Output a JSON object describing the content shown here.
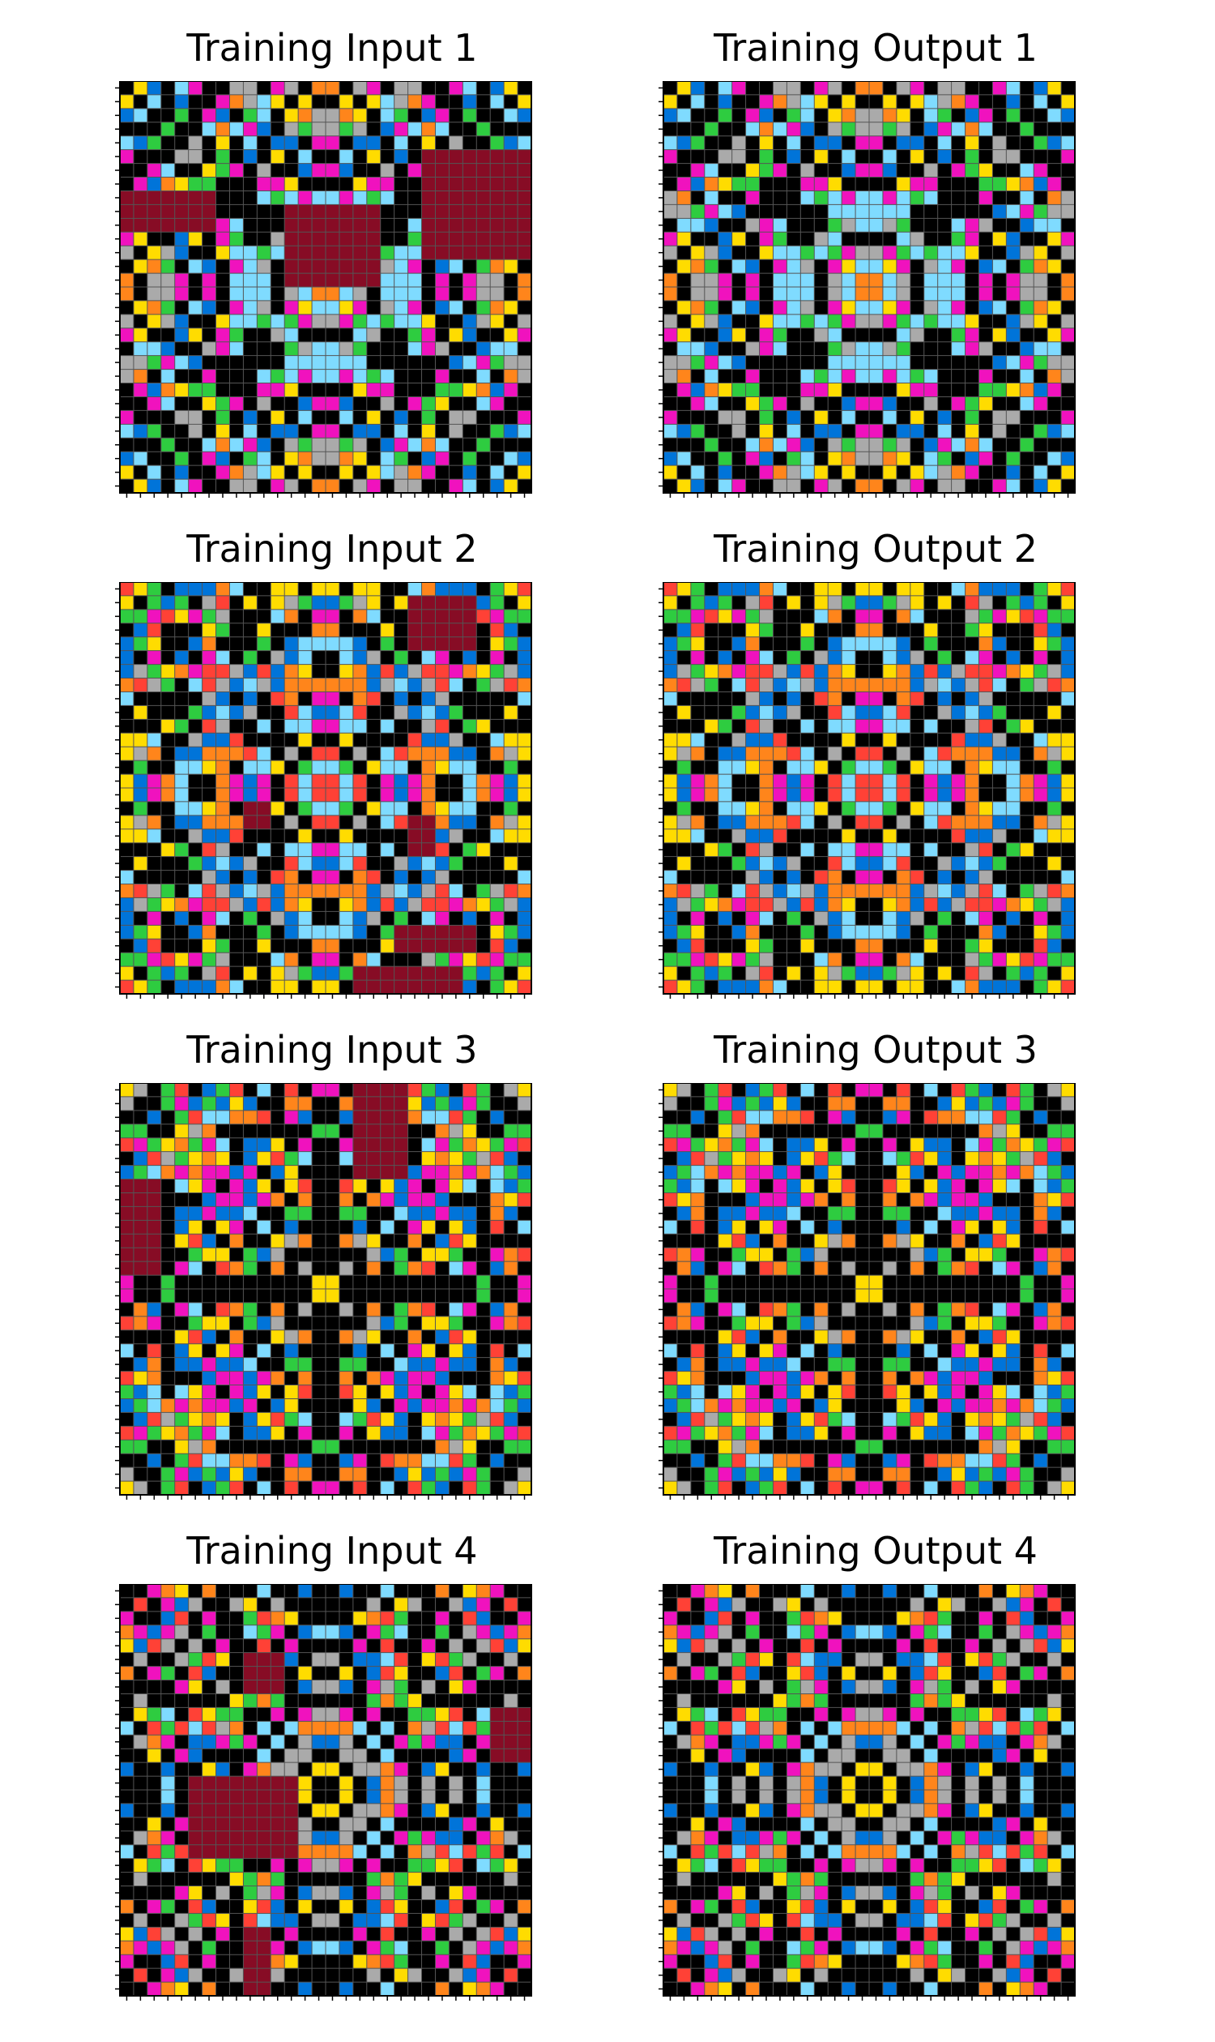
{
  "panels": [
    {
      "title": "Training Input 1"
    },
    {
      "title": "Training Output 1"
    },
    {
      "title": "Training Input 2"
    },
    {
      "title": "Training Output 2"
    },
    {
      "title": "Training Input 3"
    },
    {
      "title": "Training Output 3"
    },
    {
      "title": "Training Input 4"
    },
    {
      "title": "Training Output 4"
    }
  ],
  "grid_size": 30,
  "palette": {
    "black": "#000000",
    "blue": "#0074D9",
    "red": "#FF4136",
    "green": "#2ECC40",
    "yellow": "#FFDC00",
    "gray": "#AAAAAA",
    "magenta": "#F012BE",
    "orange": "#FF851B",
    "sky": "#7FDBFF",
    "maroon": "#870C25",
    "grid_line": "#555555"
  },
  "panel_colors": [
    [
      "black",
      "orange",
      "yellow",
      "blue",
      "gray",
      "sky",
      "magenta",
      "green"
    ],
    [
      "black",
      "orange",
      "yellow",
      "blue",
      "gray",
      "sky",
      "magenta",
      "green"
    ],
    [
      "black",
      "blue",
      "sky",
      "green",
      "magenta",
      "orange",
      "gray",
      "yellow",
      "red"
    ],
    [
      "black",
      "blue",
      "sky",
      "green",
      "magenta",
      "orange",
      "gray",
      "yellow",
      "red"
    ],
    [
      "black",
      "yellow",
      "sky",
      "orange",
      "gray",
      "blue",
      "magenta",
      "red",
      "green"
    ],
    [
      "black",
      "yellow",
      "sky",
      "orange",
      "gray",
      "blue",
      "magenta",
      "red",
      "green"
    ],
    [
      "black",
      "orange",
      "red",
      "yellow",
      "green",
      "magenta",
      "sky",
      "blue",
      "gray"
    ],
    [
      "black",
      "orange",
      "red",
      "yellow",
      "green",
      "magenta",
      "sky",
      "blue",
      "gray"
    ]
  ]
}
